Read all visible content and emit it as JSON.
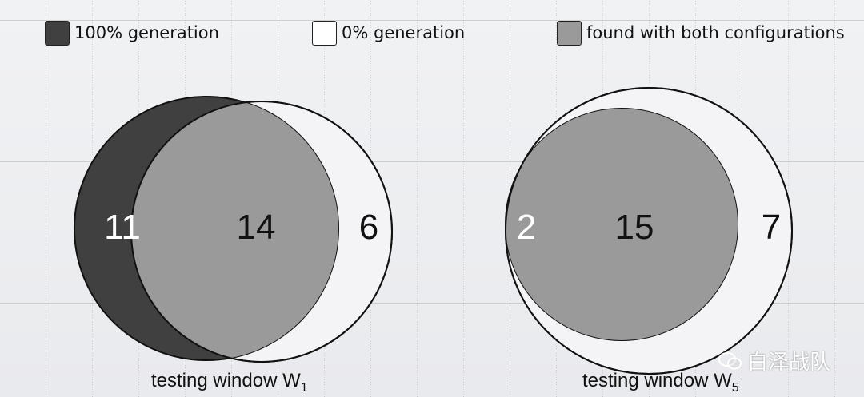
{
  "legend": [
    {
      "label": "100% generation",
      "color": "#404040"
    },
    {
      "label": "0% generation",
      "color": "#ffffff"
    },
    {
      "label": "found with both configurations",
      "color": "#9a9a9a"
    }
  ],
  "diagrams": [
    {
      "caption": "testing window W",
      "subscript": "1",
      "only_100": "11",
      "both": "14",
      "only_0": "6"
    },
    {
      "caption": "testing window W",
      "subscript": "5",
      "only_100": "2",
      "both": "15",
      "only_0": "7"
    }
  ],
  "colors": {
    "dark": "#404040",
    "mid": "#9a9a9a",
    "light": "#f4f4f6",
    "outline": "#111111"
  },
  "watermark": "白泽战队"
}
